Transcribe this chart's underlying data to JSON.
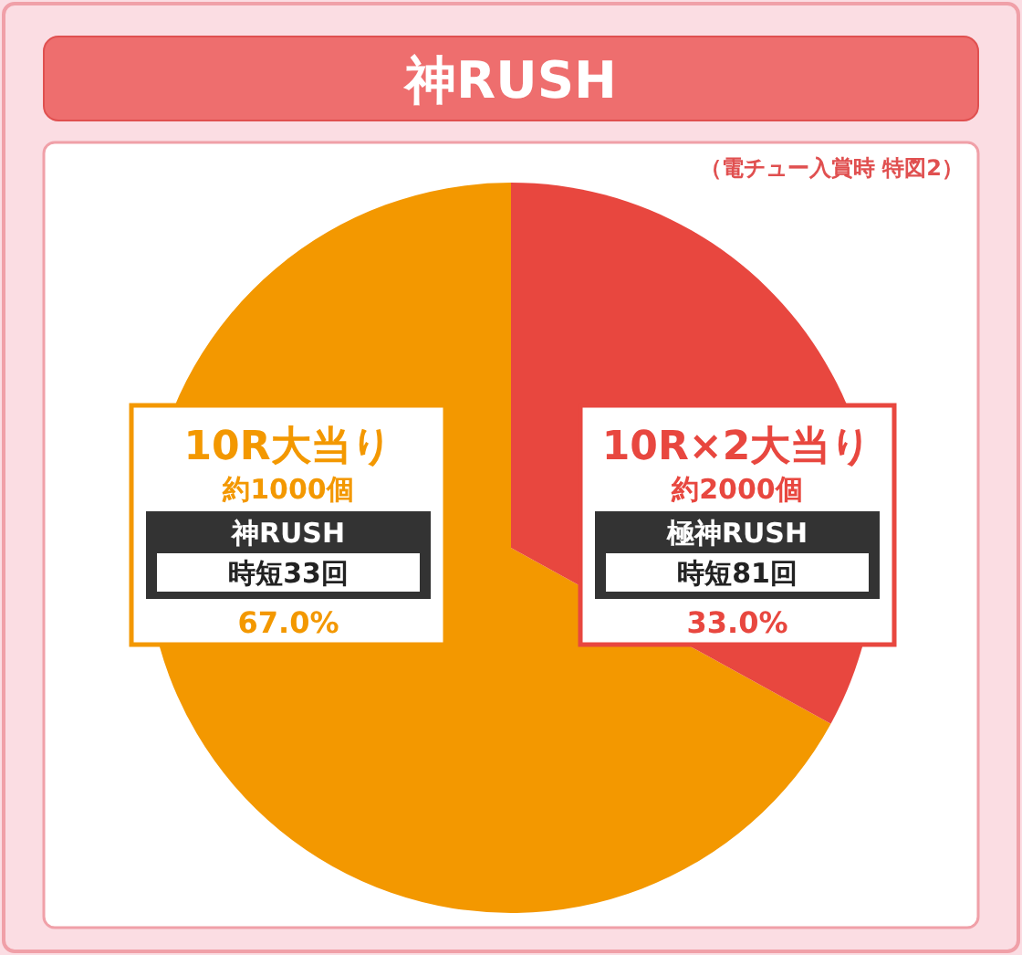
{
  "chart_data": {
    "type": "pie",
    "title": "神RUSH",
    "categories": [
      "10R大当り",
      "10R×2大当り"
    ],
    "values": [
      67.0,
      33.0
    ],
    "colors": [
      "#f39800",
      "#e8473f"
    ],
    "value_labels": [
      "67.0%",
      "33.0%"
    ],
    "annotations": [
      "（電チュー入賞時 特図2）",
      {
        "text": "約1000個",
        "x": "10R大当り"
      },
      {
        "text": "神RUSH",
        "x": "10R大当り"
      },
      {
        "text": "時短33回",
        "x": "10R大当り"
      },
      {
        "text": "約2000個",
        "x": "10R×2大当り"
      },
      {
        "text": "極神RUSH",
        "x": "10R×2大当り"
      },
      {
        "text": "時短81回",
        "x": "10R×2大当り"
      }
    ]
  }
}
